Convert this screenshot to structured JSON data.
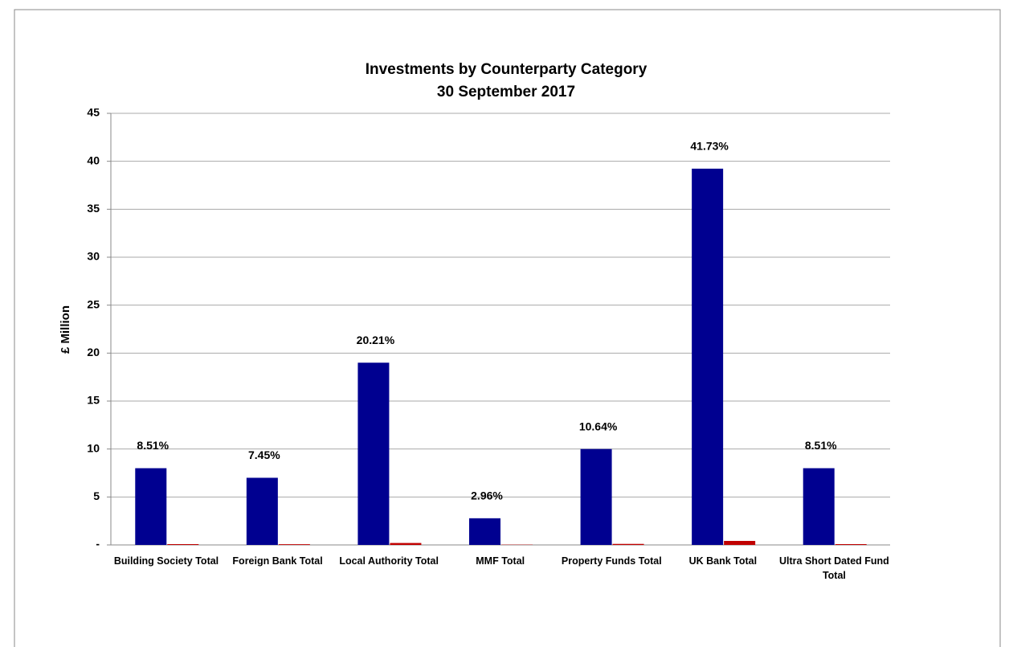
{
  "chart_data": {
    "type": "bar",
    "title": "Investments by Counterparty Category",
    "subtitle": "30 September 2017",
    "y_label": "£ Million",
    "categories": [
      "Building Society Total",
      "Foreign Bank Total",
      "Local Authority Total",
      "MMF Total",
      "Property Funds Total",
      "UK Bank Total",
      "Ultra Short Dated Fund Total"
    ],
    "series": [
      {
        "color": "#000090",
        "values": [
          8,
          7,
          19,
          2.78,
          10,
          39.23,
          8
        ]
      },
      {
        "color": "#c00000",
        "values": [
          0.0851,
          0.0745,
          0.2021,
          0.0296,
          0.1064,
          0.4173,
          0.0851
        ],
        "value_labels": [
          "8.51%",
          "7.45%",
          "20.21%",
          "2.96%",
          "10.64%",
          "41.73%",
          "8.51%"
        ]
      }
    ],
    "ylim": [
      0,
      45
    ],
    "yticks": [
      {
        "value": 0,
        "label": "-"
      },
      5,
      10,
      15,
      20,
      25,
      30,
      35,
      40,
      45
    ],
    "grid": true
  }
}
